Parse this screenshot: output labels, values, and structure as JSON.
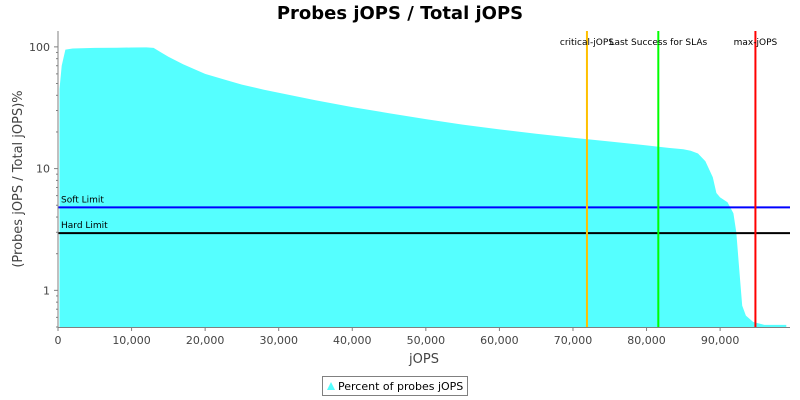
{
  "chart_data": {
    "type": "area",
    "title": "Probes jOPS / Total jOPS",
    "xlabel": "jOPS",
    "ylabel": "(Probes jOPS / Total jOPS)%",
    "xlim": [
      0,
      99500
    ],
    "ylim": [
      0.5,
      135
    ],
    "y_scale": "log",
    "x_ticks": [
      0,
      10000,
      20000,
      30000,
      40000,
      50000,
      60000,
      70000,
      80000,
      90000
    ],
    "x_tick_labels": [
      "0",
      "10,000",
      "20,000",
      "30,000",
      "40,000",
      "50,000",
      "60,000",
      "70,000",
      "80,000",
      "90,000"
    ],
    "y_ticks": [
      1,
      10,
      100
    ],
    "y_tick_labels": [
      "1",
      "10",
      "100"
    ],
    "grid": false,
    "legend_position": "bottom",
    "series": [
      {
        "name": "Percent of probes jOPS",
        "color": "#55ffff",
        "x": [
          200,
          500,
          1000,
          2000,
          5000,
          8000,
          10000,
          12000,
          13000,
          14000,
          15000,
          17000,
          20000,
          23000,
          25000,
          28000,
          30000,
          33000,
          35000,
          40000,
          45000,
          50000,
          55000,
          60000,
          65000,
          70000,
          75000,
          80000,
          83000,
          85000,
          86000,
          87000,
          88000,
          89000,
          89500,
          90000,
          91000,
          91800,
          92200,
          92600,
          93000,
          93500,
          94500,
          96000,
          97000,
          99000
        ],
        "y": [
          45,
          70,
          95,
          97,
          98,
          98.5,
          98.8,
          99,
          98,
          90,
          83,
          72,
          60,
          53,
          49,
          44.5,
          42,
          38.5,
          36.5,
          32,
          28.5,
          25.5,
          23,
          21,
          19.3,
          17.9,
          16.7,
          15.5,
          14.8,
          14.4,
          14.0,
          13.3,
          11.5,
          8.5,
          6.3,
          5.8,
          5.3,
          4.3,
          3.0,
          1.5,
          0.75,
          0.62,
          0.55,
          0.52,
          0.52,
          0.52
        ]
      }
    ],
    "vertical_markers": [
      {
        "label": "critical-jOPS",
        "x": 71900,
        "color": "#ffc000"
      },
      {
        "label": "Last Success for SLAs",
        "x": 81600,
        "color": "#00ff00"
      },
      {
        "label": "max-jOPS",
        "x": 94800,
        "color": "#ff0000"
      }
    ],
    "horizontal_limits": [
      {
        "label": "Soft Limit",
        "y": 4.8,
        "color": "#0000ff"
      },
      {
        "label": "Hard Limit",
        "y": 2.95,
        "color": "#000000"
      }
    ]
  }
}
